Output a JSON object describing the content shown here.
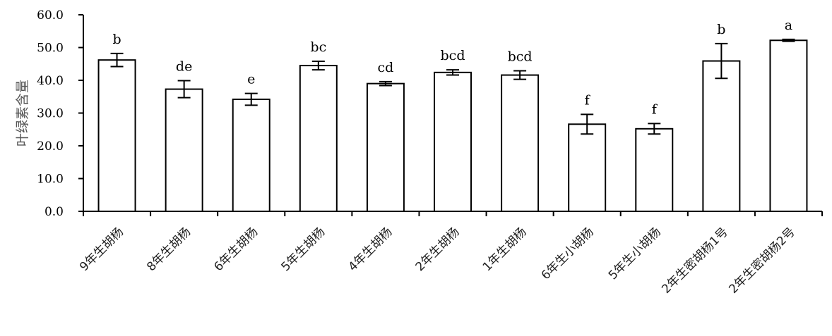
{
  "chart_data": {
    "type": "bar",
    "title": "",
    "xlabel": "",
    "ylabel": "叶绿素含量",
    "ylim": [
      0,
      60
    ],
    "y_ticks": [
      "0.0",
      "10.0",
      "20.0",
      "30.0",
      "40.0",
      "50.0",
      "60.0"
    ],
    "grid": false,
    "legend": "none",
    "bar_fill": "#ffffff",
    "bar_stroke": "#000000",
    "categories": [
      "9年生胡杨",
      "8年生胡杨",
      "6年生胡杨",
      "5年生胡杨",
      "4年生胡杨",
      "2年生胡杨",
      "1年生胡杨",
      "6年生小胡杨",
      "5年生小胡杨",
      "2年生密胡杨1号",
      "2年生密胡杨2号"
    ],
    "values": [
      46.2,
      37.3,
      34.2,
      44.5,
      39.0,
      42.4,
      41.6,
      26.6,
      25.2,
      45.9,
      52.2
    ],
    "error": [
      2.0,
      2.6,
      1.8,
      1.3,
      0.6,
      0.8,
      1.3,
      3.0,
      1.6,
      5.3,
      0.3
    ],
    "significance": [
      "b",
      "de",
      "e",
      "bc",
      "cd",
      "bcd",
      "bcd",
      "f",
      "f",
      "b",
      "a"
    ]
  }
}
